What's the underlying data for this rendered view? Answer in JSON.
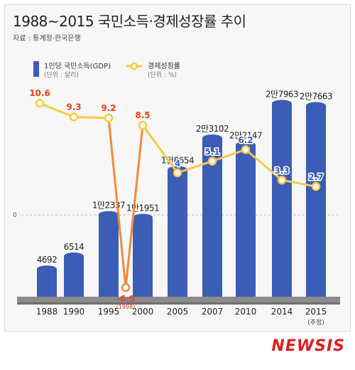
{
  "header": {
    "title": "1988~2015 국민소득·경제성장률 추이",
    "source": "자료 : 통계청·한국은행"
  },
  "legend": {
    "gdp_label": "1인당 국민소득(GDP)",
    "gdp_unit": "(단위 : 달러)",
    "growth_label": "경제성장률",
    "growth_unit": "(단위 : %)"
  },
  "brand": "NEWSIS",
  "colors": {
    "bar": "#3b5db5",
    "line": "#f7c948",
    "line_dip": "#f08a3c",
    "point_label": "#ffffff",
    "point_label_red": "#e8401c",
    "point_label_blue": "#3b5db5"
  },
  "chart_data": {
    "type": "bar",
    "categories": [
      "1988",
      "1990",
      "1995",
      "2000",
      "2005",
      "2007",
      "2010",
      "2014",
      "2015"
    ],
    "category_notes": [
      "",
      "",
      "",
      "",
      "",
      "",
      "",
      "",
      "(추정)"
    ],
    "y_zero_label": "0",
    "series": [
      {
        "name": "1인당 국민소득(GDP)",
        "type": "bar",
        "values": [
          4692,
          6514,
          12337,
          11951,
          18654,
          23102,
          22147,
          27963,
          27663
        ],
        "labels": [
          "4692",
          "6514",
          "1만2337",
          "1만1951",
          "1만8654",
          "2만3102",
          "2만2147",
          "2만7963",
          "2만7663"
        ]
      },
      {
        "name": "경제성장률",
        "type": "line",
        "points": [
          {
            "x": "1988",
            "value": 10.6,
            "label": "10.6"
          },
          {
            "x": "1990",
            "value": 9.3,
            "label": "9.3"
          },
          {
            "x": "1995",
            "value": 9.2,
            "label": "9.2"
          },
          {
            "x": "1998",
            "value": -6.9,
            "label": "-6.9",
            "note": "(1998)"
          },
          {
            "x": "2000",
            "value": 8.5,
            "label": "8.5"
          },
          {
            "x": "2005",
            "value": 4.0,
            "label": "4"
          },
          {
            "x": "2007",
            "value": 5.1,
            "label": "5.1"
          },
          {
            "x": "2010",
            "value": 6.2,
            "label": "6.2"
          },
          {
            "x": "2014",
            "value": 3.3,
            "label": "3.3"
          },
          {
            "x": "2015",
            "value": 2.7,
            "label": "2.7"
          }
        ]
      }
    ]
  }
}
